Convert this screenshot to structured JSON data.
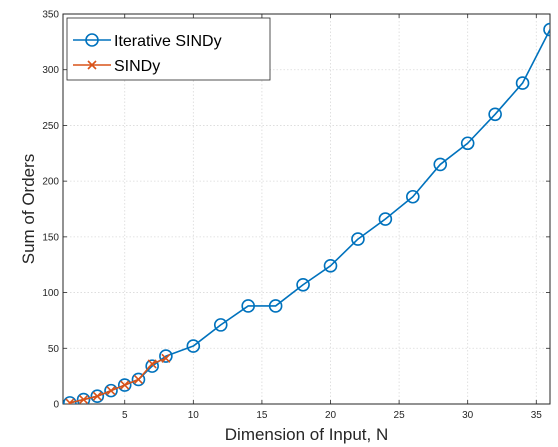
{
  "chart_data": {
    "type": "line",
    "title": "",
    "xlabel": "Dimension of Input, N",
    "ylabel": "Sum of Orders",
    "xlim": [
      0.5,
      36
    ],
    "ylim": [
      0,
      350
    ],
    "xticks": [
      5,
      10,
      15,
      20,
      25,
      30,
      35
    ],
    "yticks": [
      0,
      50,
      100,
      150,
      200,
      250,
      300,
      350
    ],
    "grid": true,
    "legend_position": "top-left",
    "series": [
      {
        "name": "Iterative SINDy",
        "color": "#0072BD",
        "marker": "circle",
        "x": [
          1,
          2,
          3,
          4,
          5,
          6,
          7,
          8,
          10,
          12,
          14,
          16,
          18,
          20,
          22,
          24,
          26,
          28,
          30,
          32,
          34,
          36
        ],
        "y": [
          1,
          4,
          7,
          12,
          17,
          22,
          34,
          43,
          52,
          71,
          88,
          88,
          107,
          124,
          148,
          166,
          186,
          215,
          234,
          260,
          288,
          336
        ]
      },
      {
        "name": "SINDy",
        "color": "#D95319",
        "marker": "x",
        "x": [
          1,
          2,
          3,
          4,
          5,
          6,
          7,
          8
        ],
        "y": [
          1,
          4,
          7,
          12,
          17,
          22,
          36,
          41
        ]
      }
    ]
  }
}
